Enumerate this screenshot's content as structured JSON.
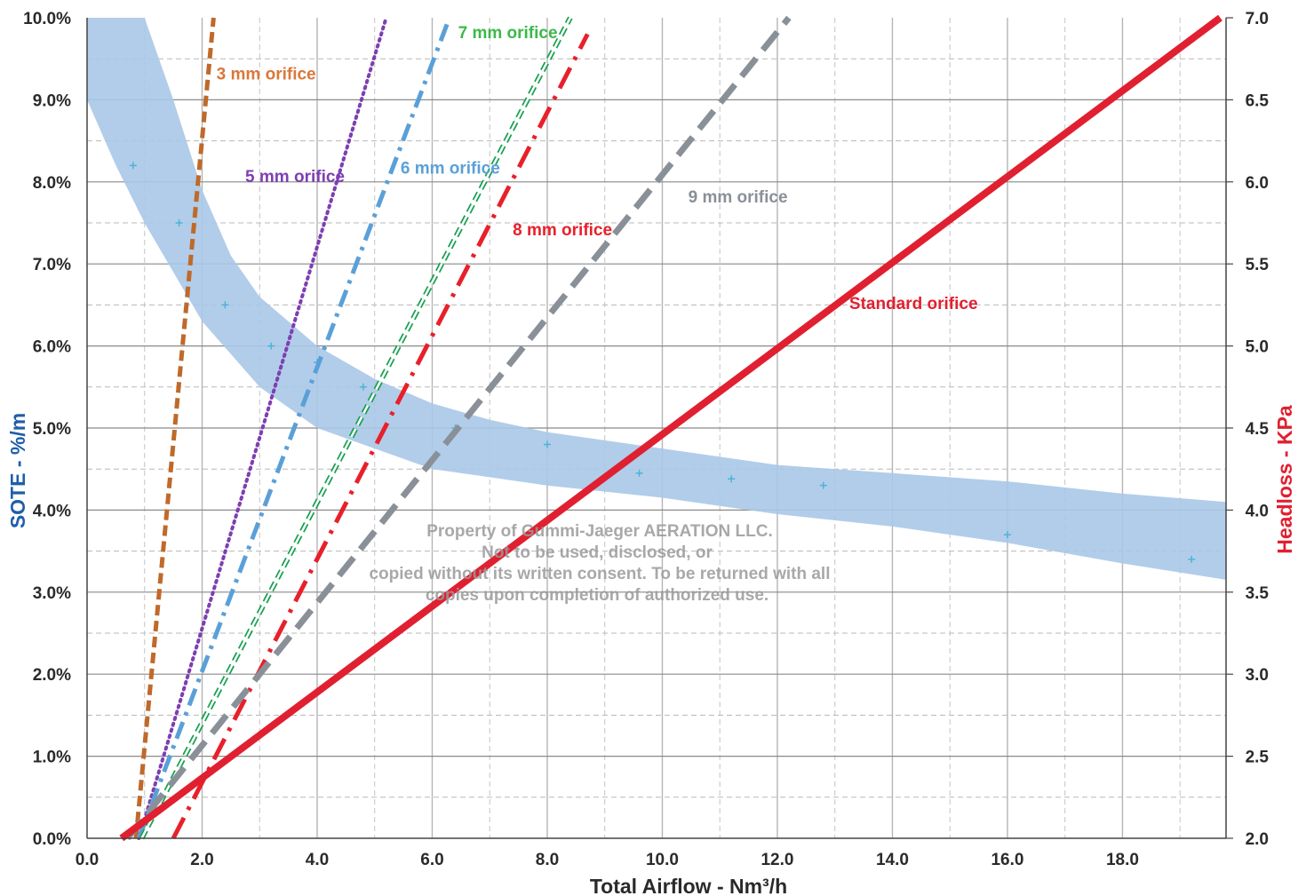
{
  "chart_data": {
    "type": "line",
    "xlabel": "Total Airflow - Nm³/h",
    "ylabel_left": "SOTE - %/m",
    "ylabel_right": "Headloss - KPa",
    "xlim": [
      0,
      19.8
    ],
    "ylim_left": [
      0,
      10
    ],
    "ylim_right": [
      2.0,
      7.0
    ],
    "grid": true,
    "x_ticks": [
      "0.0",
      "2.0",
      "4.0",
      "6.0",
      "8.0",
      "10.0",
      "12.0",
      "14.0",
      "16.0",
      "18.0"
    ],
    "y_left_ticks": [
      "0.0%",
      "1.0%",
      "2.0%",
      "3.0%",
      "4.0%",
      "5.0%",
      "6.0%",
      "7.0%",
      "8.0%",
      "9.0%",
      "10.0%"
    ],
    "y_right_ticks": [
      "2.0",
      "2.5",
      "3.0",
      "3.5",
      "4.0",
      "4.5",
      "5.0",
      "5.5",
      "6.0",
      "6.5",
      "7.0"
    ],
    "sote_band": {
      "axis": "left",
      "color": "#a9c8e8",
      "x": [
        0.0,
        0.5,
        1.0,
        1.5,
        2.0,
        2.5,
        3.0,
        4.0,
        5.0,
        6.0,
        7.0,
        8.0,
        10.0,
        12.0,
        14.0,
        16.0,
        18.0,
        19.8
      ],
      "upper": [
        10.0,
        10.0,
        10.0,
        9.0,
        7.9,
        7.1,
        6.6,
        6.0,
        5.6,
        5.3,
        5.1,
        4.95,
        4.75,
        4.55,
        4.45,
        4.35,
        4.2,
        4.1
      ],
      "lower": [
        9.0,
        8.2,
        7.5,
        6.9,
        6.3,
        5.9,
        5.5,
        5.0,
        4.75,
        4.5,
        4.4,
        4.3,
        4.15,
        3.95,
        3.8,
        3.6,
        3.35,
        3.15
      ]
    },
    "sote_points": {
      "axis": "left",
      "color": "#4fb2d8",
      "x": [
        0.8,
        1.6,
        2.4,
        3.2,
        4.0,
        4.8,
        6.4,
        8.0,
        9.6,
        11.2,
        12.8,
        16.0,
        19.2
      ],
      "y": [
        8.2,
        7.5,
        6.5,
        6.0,
        5.8,
        5.5,
        5.0,
        4.8,
        4.45,
        4.38,
        4.3,
        3.7,
        3.4
      ]
    },
    "series": [
      {
        "name": "3 mm orifice",
        "color": "#c0692a",
        "style": "dash",
        "axis": "right",
        "x": [
          0.85,
          2.2
        ],
        "y": [
          2.0,
          7.0
        ]
      },
      {
        "name": "5 mm orifice",
        "color": "#7e3fb0",
        "style": "dot",
        "axis": "right",
        "x": [
          0.9,
          5.2
        ],
        "y": [
          2.0,
          7.0
        ]
      },
      {
        "name": "6 mm orifice",
        "color": "#5aa0d8",
        "style": "dashdot",
        "axis": "right",
        "x": [
          0.9,
          6.3
        ],
        "y": [
          2.0,
          7.0
        ]
      },
      {
        "name": "7 mm orifice",
        "color": "#18a050",
        "style": "hollow-dash",
        "axis": "right",
        "x": [
          0.95,
          8.4
        ],
        "y": [
          2.0,
          7.0
        ]
      },
      {
        "name": "8 mm orifice",
        "color": "#e8202a",
        "style": "longdash-dot",
        "axis": "right",
        "x": [
          1.5,
          8.7
        ],
        "y": [
          2.0,
          6.9
        ]
      },
      {
        "name": "9 mm orifice",
        "color": "#8a9098",
        "style": "longdash",
        "axis": "right",
        "x": [
          0.7,
          12.2
        ],
        "y": [
          2.0,
          7.0
        ]
      },
      {
        "name": "Standard orifice",
        "color": "#e02030",
        "style": "solid",
        "axis": "right",
        "x": [
          0.6,
          19.7
        ],
        "y": [
          2.0,
          7.0
        ]
      }
    ],
    "annotations": [
      {
        "text": "3 mm orifice",
        "color": "#d8783a",
        "x": 2.25,
        "y_left": 9.25
      },
      {
        "text": "5 mm orifice",
        "color": "#7e3fb0",
        "x": 2.75,
        "y_left": 8.0
      },
      {
        "text": "6 mm orifice",
        "color": "#5aa0d8",
        "x": 5.45,
        "y_left": 8.1
      },
      {
        "text": "7 mm orifice",
        "color": "#3db84a",
        "x": 6.45,
        "y_left": 9.75
      },
      {
        "text": "8 mm orifice",
        "color": "#e8202a",
        "x": 7.4,
        "y_left": 7.35
      },
      {
        "text": "9 mm orifice",
        "color": "#8a9098",
        "x": 10.45,
        "y_left": 7.75
      },
      {
        "text": "Standard orifice",
        "color": "#e02030",
        "x": 13.25,
        "y_left": 6.45
      }
    ],
    "watermark": [
      "Property of Gummi-Jaeger AERATION LLC.",
      "Not to be used, disclosed, or",
      "copied without its written consent. To be returned with all",
      "copies upon completion of authorized use."
    ]
  }
}
